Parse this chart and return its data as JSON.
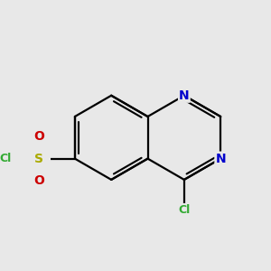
{
  "bg_color": "#e8e8e8",
  "bond_color": "#000000",
  "bond_width": 1.6,
  "atom_colors": {
    "N": "#0000cc",
    "S": "#aaaa00",
    "O": "#cc0000",
    "Cl": "#33aa33"
  },
  "font_size": 10,
  "font_size_cl": 9
}
